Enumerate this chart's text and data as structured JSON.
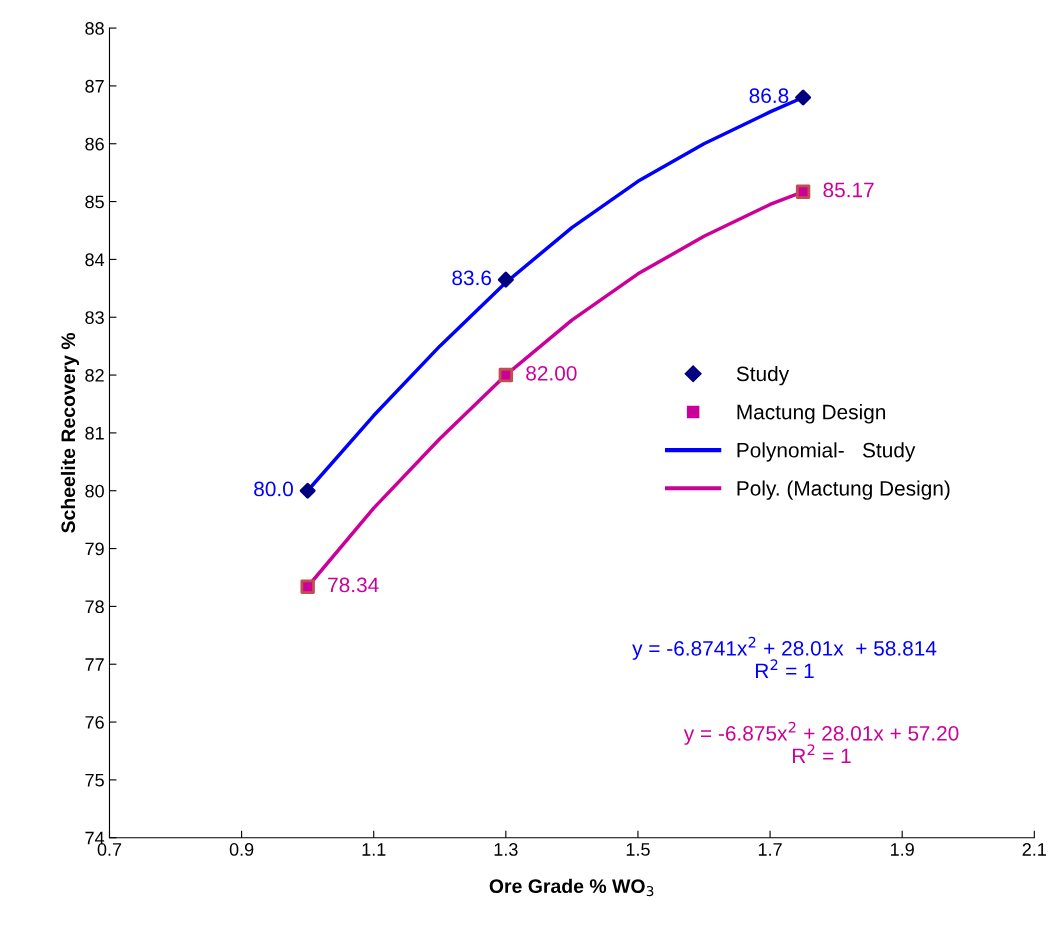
{
  "chart_data": {
    "type": "scatter",
    "xlabel": "Ore Grade % WO$_{3}$",
    "ylabel": "Scheelite Recovery %",
    "xlim": [
      0.7,
      2.1
    ],
    "xticks": [
      0.7,
      0.9,
      1.1,
      1.3,
      1.5,
      1.7,
      1.9,
      2.1
    ],
    "ylim": [
      74,
      88
    ],
    "yticks": [
      74,
      75,
      76,
      77,
      78,
      79,
      80,
      81,
      82,
      83,
      84,
      85,
      86,
      87,
      88
    ],
    "grid": false,
    "legend": "right",
    "series": [
      {
        "name": "Study",
        "marker": "diamond",
        "color": "#000080",
        "x": [
          1.0,
          1.3,
          1.75
        ],
        "values": [
          80.0,
          83.65,
          86.8
        ],
        "value_labels": [
          "80.0",
          "83.6",
          "86.8"
        ]
      },
      {
        "name": "Mactung Design",
        "marker": "square",
        "color": "#cc0099",
        "x": [
          1.0,
          1.3,
          1.75
        ],
        "values": [
          78.34,
          82.0,
          85.17
        ],
        "value_labels": [
          "78.34",
          "82.00",
          "85.17"
        ]
      },
      {
        "name": "Polynomial-   Study",
        "type": "line",
        "color": "#0000ff",
        "x": [
          1.0,
          1.1,
          1.2,
          1.3,
          1.4,
          1.5,
          1.6,
          1.7,
          1.75
        ],
        "values": [
          80.0,
          81.3,
          82.5,
          83.6,
          84.55,
          85.35,
          86.0,
          86.55,
          86.8
        ]
      },
      {
        "name": "Poly. (Mactung Design)",
        "type": "line",
        "color": "#cc0099",
        "x": [
          1.0,
          1.1,
          1.2,
          1.3,
          1.4,
          1.5,
          1.6,
          1.7,
          1.75
        ],
        "values": [
          78.34,
          79.7,
          80.9,
          82.0,
          82.95,
          83.75,
          84.4,
          84.95,
          85.17
        ]
      }
    ],
    "annotations": [
      "y = -6.8741x$^{2}$ + 28.01x  + 58.814\nR$^{2}$ = 1",
      "y = -6.875x$^{2}$ + 28.01x + 57.20\nR$^{2}$ = 1"
    ]
  }
}
